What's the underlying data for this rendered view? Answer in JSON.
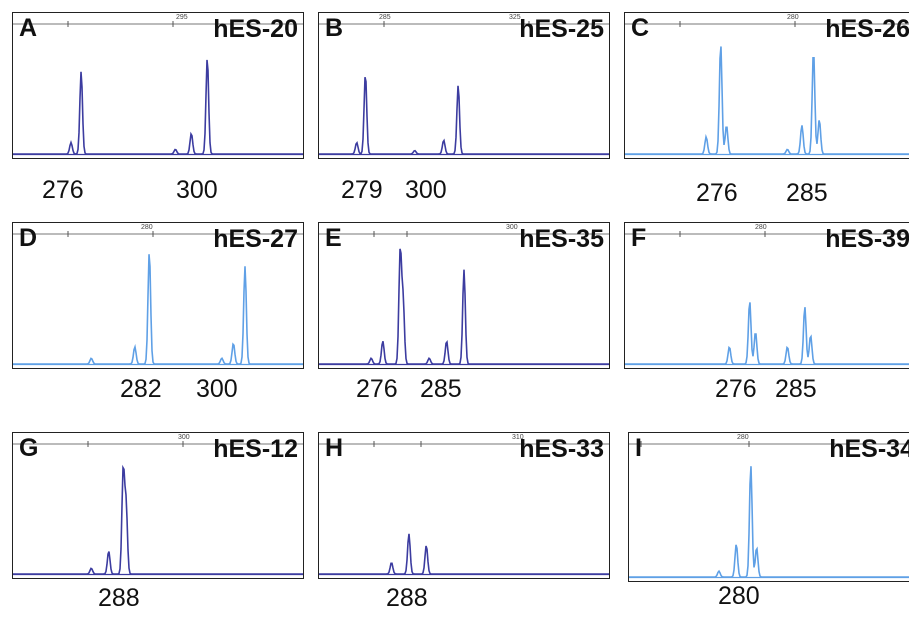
{
  "chart_data": [
    {
      "type": "line",
      "panel": "A",
      "sample": "hES-20",
      "ruler_label": "295",
      "color": "#3c3ca0",
      "peaks": [
        {
          "pos": 0.2,
          "h": 0.1
        },
        {
          "pos": 0.235,
          "h": 0.72
        },
        {
          "pos": 0.56,
          "h": 0.04
        },
        {
          "pos": 0.615,
          "h": 0.18
        },
        {
          "pos": 0.67,
          "h": 0.84
        }
      ],
      "size_labels": [
        "276",
        "300"
      ]
    },
    {
      "type": "line",
      "panel": "B",
      "sample": "hES-25",
      "ruler_label": "285",
      "ruler_label_2": "325",
      "color": "#3c3ca0",
      "peaks": [
        {
          "pos": 0.13,
          "h": 0.1
        },
        {
          "pos": 0.16,
          "h": 0.7
        },
        {
          "pos": 0.33,
          "h": 0.03
        },
        {
          "pos": 0.43,
          "h": 0.12
        },
        {
          "pos": 0.48,
          "h": 0.6
        }
      ],
      "size_labels": [
        "279",
        "300"
      ]
    },
    {
      "type": "line",
      "panel": "C",
      "sample": "hES-26",
      "ruler_label": "280",
      "color": "#5fa0e6",
      "peaks": [
        {
          "pos": 0.28,
          "h": 0.15
        },
        {
          "pos": 0.33,
          "h": 0.96
        },
        {
          "pos": 0.35,
          "h": 0.25
        },
        {
          "pos": 0.56,
          "h": 0.04
        },
        {
          "pos": 0.61,
          "h": 0.25
        },
        {
          "pos": 0.65,
          "h": 0.9
        },
        {
          "pos": 0.67,
          "h": 0.3
        }
      ],
      "size_labels": [
        "276",
        "285"
      ]
    },
    {
      "type": "line",
      "panel": "D",
      "sample": "hES-27",
      "ruler_label": "280",
      "color": "#5fa0e6",
      "peaks": [
        {
          "pos": 0.27,
          "h": 0.05
        },
        {
          "pos": 0.42,
          "h": 0.15
        },
        {
          "pos": 0.47,
          "h": 0.98
        },
        {
          "pos": 0.72,
          "h": 0.05
        },
        {
          "pos": 0.76,
          "h": 0.18
        },
        {
          "pos": 0.8,
          "h": 0.85
        }
      ],
      "size_labels": [
        "282",
        "300"
      ]
    },
    {
      "type": "line",
      "panel": "E",
      "sample": "hES-35",
      "ruler_label": "300",
      "color": "#3c3ca0",
      "peaks": [
        {
          "pos": 0.18,
          "h": 0.05
        },
        {
          "pos": 0.22,
          "h": 0.2
        },
        {
          "pos": 0.28,
          "h": 0.98
        },
        {
          "pos": 0.29,
          "h": 0.55
        },
        {
          "pos": 0.38,
          "h": 0.05
        },
        {
          "pos": 0.44,
          "h": 0.2
        },
        {
          "pos": 0.5,
          "h": 0.82
        }
      ],
      "size_labels": [
        "276",
        "285"
      ]
    },
    {
      "type": "line",
      "panel": "F",
      "sample": "hES-39",
      "ruler_label": "280",
      "color": "#5fa0e6",
      "peaks": [
        {
          "pos": 0.36,
          "h": 0.15
        },
        {
          "pos": 0.43,
          "h": 0.55
        },
        {
          "pos": 0.45,
          "h": 0.28
        },
        {
          "pos": 0.56,
          "h": 0.15
        },
        {
          "pos": 0.62,
          "h": 0.5
        },
        {
          "pos": 0.64,
          "h": 0.25
        }
      ],
      "size_labels": [
        "276",
        "285"
      ]
    },
    {
      "type": "line",
      "panel": "G",
      "sample": "hES-12",
      "ruler_label": "300",
      "color": "#3c3ca0",
      "peaks": [
        {
          "pos": 0.27,
          "h": 0.05
        },
        {
          "pos": 0.33,
          "h": 0.2
        },
        {
          "pos": 0.38,
          "h": 0.9
        },
        {
          "pos": 0.39,
          "h": 0.6
        }
      ],
      "size_labels": [
        "288"
      ]
    },
    {
      "type": "line",
      "panel": "H",
      "sample": "hES-33",
      "ruler_label": "310",
      "color": "#3c3ca0",
      "peaks": [
        {
          "pos": 0.25,
          "h": 0.1
        },
        {
          "pos": 0.31,
          "h": 0.35
        },
        {
          "pos": 0.37,
          "h": 0.25
        }
      ],
      "size_labels": [
        "288"
      ]
    },
    {
      "type": "line",
      "panel": "I",
      "sample": "hES-34",
      "ruler_label": "280",
      "color": "#5fa0e6",
      "peaks": [
        {
          "pos": 0.31,
          "h": 0.05
        },
        {
          "pos": 0.37,
          "h": 0.28
        },
        {
          "pos": 0.42,
          "h": 0.95
        },
        {
          "pos": 0.44,
          "h": 0.25
        }
      ],
      "size_labels": [
        "280"
      ]
    }
  ]
}
